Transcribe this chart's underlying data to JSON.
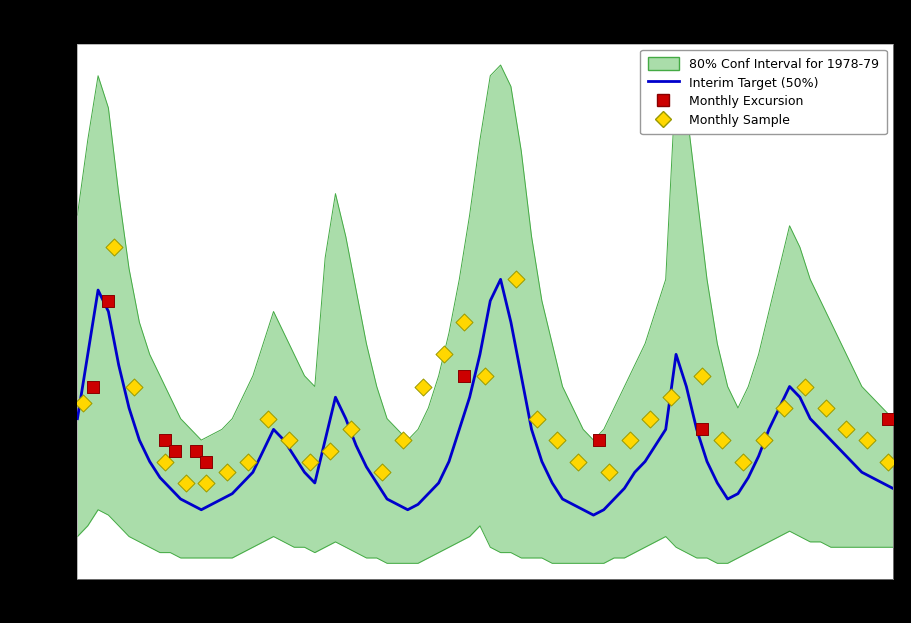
{
  "legend_entries": [
    "80% Conf Interval for 1978-79",
    "Interim Target (50%)",
    "Monthly Excursion",
    "Monthly Sample"
  ],
  "ci_color": "#AADDAA",
  "ci_edge_color": "#44AA44",
  "line_color": "#0000CC",
  "excursion_color": "#CC0000",
  "sample_color": "#FFD700",
  "sample_edge_color": "#999900",
  "n_points": 80,
  "upper_band": [
    0.68,
    0.82,
    0.94,
    0.88,
    0.72,
    0.58,
    0.48,
    0.42,
    0.38,
    0.34,
    0.3,
    0.28,
    0.26,
    0.27,
    0.28,
    0.3,
    0.34,
    0.38,
    0.44,
    0.5,
    0.46,
    0.42,
    0.38,
    0.36,
    0.6,
    0.72,
    0.64,
    0.54,
    0.44,
    0.36,
    0.3,
    0.28,
    0.26,
    0.28,
    0.32,
    0.38,
    0.46,
    0.56,
    0.68,
    0.82,
    0.94,
    0.96,
    0.92,
    0.8,
    0.64,
    0.52,
    0.44,
    0.36,
    0.32,
    0.28,
    0.26,
    0.28,
    0.32,
    0.36,
    0.4,
    0.44,
    0.5,
    0.56,
    0.94,
    0.88,
    0.72,
    0.56,
    0.44,
    0.36,
    0.32,
    0.36,
    0.42,
    0.5,
    0.58,
    0.66,
    0.62,
    0.56,
    0.52,
    0.48,
    0.44,
    0.4,
    0.36,
    0.34,
    0.32,
    0.3
  ],
  "lower_band": [
    0.08,
    0.1,
    0.13,
    0.12,
    0.1,
    0.08,
    0.07,
    0.06,
    0.05,
    0.05,
    0.04,
    0.04,
    0.04,
    0.04,
    0.04,
    0.04,
    0.05,
    0.06,
    0.07,
    0.08,
    0.07,
    0.06,
    0.06,
    0.05,
    0.06,
    0.07,
    0.06,
    0.05,
    0.04,
    0.04,
    0.03,
    0.03,
    0.03,
    0.03,
    0.04,
    0.05,
    0.06,
    0.07,
    0.08,
    0.1,
    0.06,
    0.05,
    0.05,
    0.04,
    0.04,
    0.04,
    0.03,
    0.03,
    0.03,
    0.03,
    0.03,
    0.03,
    0.04,
    0.04,
    0.05,
    0.06,
    0.07,
    0.08,
    0.06,
    0.05,
    0.04,
    0.04,
    0.03,
    0.03,
    0.04,
    0.05,
    0.06,
    0.07,
    0.08,
    0.09,
    0.08,
    0.07,
    0.07,
    0.06,
    0.06,
    0.06,
    0.06,
    0.06,
    0.06,
    0.06
  ],
  "median_line": [
    0.3,
    0.42,
    0.54,
    0.5,
    0.4,
    0.32,
    0.26,
    0.22,
    0.19,
    0.17,
    0.15,
    0.14,
    0.13,
    0.14,
    0.15,
    0.16,
    0.18,
    0.2,
    0.24,
    0.28,
    0.26,
    0.23,
    0.2,
    0.18,
    0.26,
    0.34,
    0.3,
    0.25,
    0.21,
    0.18,
    0.15,
    0.14,
    0.13,
    0.14,
    0.16,
    0.18,
    0.22,
    0.28,
    0.34,
    0.42,
    0.52,
    0.56,
    0.48,
    0.38,
    0.28,
    0.22,
    0.18,
    0.15,
    0.14,
    0.13,
    0.12,
    0.13,
    0.15,
    0.17,
    0.2,
    0.22,
    0.25,
    0.28,
    0.42,
    0.36,
    0.28,
    0.22,
    0.18,
    0.15,
    0.16,
    0.19,
    0.23,
    0.28,
    0.32,
    0.36,
    0.34,
    0.3,
    0.28,
    0.26,
    0.24,
    0.22,
    0.2,
    0.19,
    0.18,
    0.17
  ],
  "sample_x": [
    0.5,
    3.5,
    5.5,
    8.5,
    10.5,
    12.5,
    14.5,
    16.5,
    18.5,
    20.5,
    22.5,
    24.5,
    26.5,
    29.5,
    31.5,
    33.5,
    35.5,
    37.5,
    39.5,
    42.5,
    44.5,
    46.5,
    48.5,
    51.5,
    53.5,
    55.5,
    57.5,
    60.5,
    62.5,
    64.5,
    66.5,
    68.5,
    70.5,
    72.5,
    74.5,
    76.5,
    78.5
  ],
  "sample_y": [
    0.33,
    0.62,
    0.36,
    0.22,
    0.18,
    0.18,
    0.2,
    0.22,
    0.3,
    0.26,
    0.22,
    0.24,
    0.28,
    0.2,
    0.26,
    0.36,
    0.42,
    0.48,
    0.38,
    0.56,
    0.3,
    0.26,
    0.22,
    0.2,
    0.26,
    0.3,
    0.34,
    0.38,
    0.26,
    0.22,
    0.26,
    0.32,
    0.36,
    0.32,
    0.28,
    0.26,
    0.22
  ],
  "excursion_x": [
    1.5,
    3.0,
    8.5,
    9.5,
    11.5,
    12.5,
    37.5,
    50.5,
    60.5,
    78.5
  ],
  "excursion_y": [
    0.36,
    0.52,
    0.26,
    0.24,
    0.24,
    0.22,
    0.38,
    0.26,
    0.28,
    0.3
  ],
  "ylim_min": 0.0,
  "ylim_max": 1.0,
  "grid_color": "#BBBBBB",
  "grid_linewidth": 0.8
}
